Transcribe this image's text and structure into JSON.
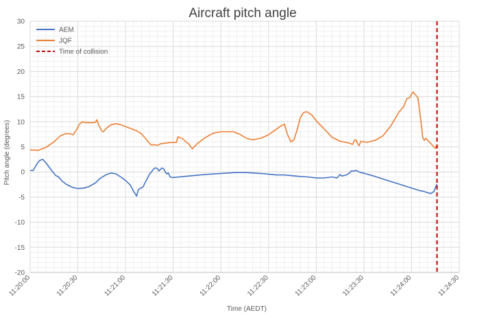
{
  "chart_data": {
    "type": "line",
    "title": "Aircraft pitch angle",
    "xlabel": "Time (AEDT)",
    "ylabel": "Pitch angle (degrees)",
    "ylim": [
      -20,
      30
    ],
    "yticks": [
      "30",
      "25",
      "20",
      "15",
      "10",
      "5",
      "0",
      "-5",
      "-10",
      "-15",
      "-20"
    ],
    "xlim": [
      "11:20:00",
      "11:24:30"
    ],
    "xticks": [
      "11:20:00",
      "11:20:30",
      "11:21:00",
      "11:21:30",
      "11:22:00",
      "11:22:30",
      "11:23:00",
      "11:23:30",
      "11:24:00",
      "11:24:30"
    ],
    "grid": true,
    "legend_position": "top-left",
    "series": [
      {
        "name": "AEM",
        "color": "#4472c4",
        "points": [
          [
            "11:20:00",
            0.3
          ],
          [
            "11:20:02",
            0.3
          ],
          [
            "11:20:04",
            1.5
          ],
          [
            "11:20:06",
            2.3
          ],
          [
            "11:20:08",
            2.5
          ],
          [
            "11:20:10",
            1.8
          ],
          [
            "11:20:13",
            0.5
          ],
          [
            "11:20:16",
            -0.7
          ],
          [
            "11:20:18",
            -1.0
          ],
          [
            "11:20:20",
            -1.8
          ],
          [
            "11:20:23",
            -2.5
          ],
          [
            "11:20:27",
            -3.1
          ],
          [
            "11:20:30",
            -3.3
          ],
          [
            "11:20:34",
            -3.2
          ],
          [
            "11:20:37",
            -2.9
          ],
          [
            "11:20:41",
            -2.2
          ],
          [
            "11:20:44",
            -1.3
          ],
          [
            "11:20:48",
            -0.5
          ],
          [
            "11:20:51",
            -0.2
          ],
          [
            "11:20:54",
            -0.4
          ],
          [
            "11:20:57",
            -1.0
          ],
          [
            "11:21:00",
            -1.7
          ],
          [
            "11:21:03",
            -2.6
          ],
          [
            "11:21:05",
            -3.8
          ],
          [
            "11:21:07",
            -4.8
          ],
          [
            "11:21:08",
            -3.6
          ],
          [
            "11:21:09",
            -3.3
          ],
          [
            "11:21:11",
            -3.0
          ],
          [
            "11:21:13",
            -1.7
          ],
          [
            "11:21:15",
            -0.5
          ],
          [
            "11:21:17",
            0.3
          ],
          [
            "11:21:18",
            0.7
          ],
          [
            "11:21:19",
            0.8
          ],
          [
            "11:21:20",
            0.7
          ],
          [
            "11:21:21",
            0.2
          ],
          [
            "11:21:22",
            0.5
          ],
          [
            "11:21:23",
            0.8
          ],
          [
            "11:21:24",
            0.6
          ],
          [
            "11:21:25",
            0.0
          ],
          [
            "11:21:26",
            -0.4
          ],
          [
            "11:21:27",
            -0.2
          ],
          [
            "11:21:28",
            -1.0
          ],
          [
            "11:21:30",
            -1.1
          ],
          [
            "11:21:40",
            -0.8
          ],
          [
            "11:21:50",
            -0.5
          ],
          [
            "11:22:00",
            -0.3
          ],
          [
            "11:22:10",
            -0.1
          ],
          [
            "11:22:15",
            -0.1
          ],
          [
            "11:22:25",
            -0.3
          ],
          [
            "11:22:35",
            -0.6
          ],
          [
            "11:22:40",
            -0.6
          ],
          [
            "11:22:50",
            -0.9
          ],
          [
            "11:22:55",
            -1.0
          ],
          [
            "11:23:00",
            -1.2
          ],
          [
            "11:23:05",
            -1.2
          ],
          [
            "11:23:10",
            -1.0
          ],
          [
            "11:23:13",
            -1.2
          ],
          [
            "11:23:15",
            -0.5
          ],
          [
            "11:23:16",
            -0.8
          ],
          [
            "11:23:19",
            -0.6
          ],
          [
            "11:23:21",
            -0.2
          ],
          [
            "11:23:22",
            0.2
          ],
          [
            "11:23:24",
            0.2
          ],
          [
            "11:23:25",
            0.3
          ],
          [
            "11:23:27",
            0.0
          ],
          [
            "11:23:35",
            -0.7
          ],
          [
            "11:23:45",
            -1.7
          ],
          [
            "11:23:55",
            -2.7
          ],
          [
            "11:24:00",
            -3.2
          ],
          [
            "11:24:05",
            -3.7
          ],
          [
            "11:24:07",
            -3.8
          ],
          [
            "11:24:09",
            -4.0
          ],
          [
            "11:24:12",
            -4.3
          ],
          [
            "11:24:14",
            -3.9
          ],
          [
            "11:24:16",
            -2.4
          ]
        ]
      },
      {
        "name": "JQF",
        "color": "#ed7d31",
        "points": [
          [
            "11:20:00",
            4.4
          ],
          [
            "11:20:05",
            4.3
          ],
          [
            "11:20:10",
            4.9
          ],
          [
            "11:20:15",
            6.0
          ],
          [
            "11:20:19",
            7.2
          ],
          [
            "11:20:22",
            7.6
          ],
          [
            "11:20:25",
            7.6
          ],
          [
            "11:20:27",
            7.4
          ],
          [
            "11:20:29",
            8.3
          ],
          [
            "11:20:31",
            9.5
          ],
          [
            "11:20:33",
            10.0
          ],
          [
            "11:20:35",
            9.8
          ],
          [
            "11:20:39",
            9.8
          ],
          [
            "11:20:41",
            9.9
          ],
          [
            "11:20:42",
            10.4
          ],
          [
            "11:20:43",
            9.4
          ],
          [
            "11:20:45",
            8.2
          ],
          [
            "11:20:46",
            8.0
          ],
          [
            "11:20:48",
            8.7
          ],
          [
            "11:20:51",
            9.4
          ],
          [
            "11:20:54",
            9.6
          ],
          [
            "11:20:57",
            9.4
          ],
          [
            "11:21:02",
            8.8
          ],
          [
            "11:21:07",
            8.2
          ],
          [
            "11:21:10",
            7.6
          ],
          [
            "11:21:14",
            6.1
          ],
          [
            "11:21:16",
            5.4
          ],
          [
            "11:21:18",
            5.4
          ],
          [
            "11:21:20",
            5.3
          ],
          [
            "11:21:22",
            5.6
          ],
          [
            "11:21:24",
            5.7
          ],
          [
            "11:21:27",
            5.8
          ],
          [
            "11:21:30",
            5.9
          ],
          [
            "11:21:32",
            5.9
          ],
          [
            "11:21:33",
            7.0
          ],
          [
            "11:21:36",
            6.6
          ],
          [
            "11:21:38",
            6.0
          ],
          [
            "11:21:40",
            5.5
          ],
          [
            "11:21:42",
            4.6
          ],
          [
            "11:21:45",
            5.6
          ],
          [
            "11:21:50",
            6.8
          ],
          [
            "11:21:55",
            7.7
          ],
          [
            "11:22:00",
            8.0
          ],
          [
            "11:22:05",
            8.0
          ],
          [
            "11:22:08",
            8.0
          ],
          [
            "11:22:12",
            7.5
          ],
          [
            "11:22:16",
            6.7
          ],
          [
            "11:22:20",
            6.4
          ],
          [
            "11:22:25",
            6.7
          ],
          [
            "11:22:30",
            7.4
          ],
          [
            "11:22:34",
            8.3
          ],
          [
            "11:22:38",
            9.2
          ],
          [
            "11:22:40",
            9.5
          ],
          [
            "11:22:42",
            7.4
          ],
          [
            "11:22:44",
            6.0
          ],
          [
            "11:22:46",
            6.4
          ],
          [
            "11:22:48",
            8.4
          ],
          [
            "11:22:50",
            10.8
          ],
          [
            "11:22:52",
            11.8
          ],
          [
            "11:22:54",
            12.0
          ],
          [
            "11:22:57",
            11.4
          ],
          [
            "11:23:00",
            10.2
          ],
          [
            "11:23:03",
            9.2
          ],
          [
            "11:23:07",
            7.9
          ],
          [
            "11:23:10",
            6.9
          ],
          [
            "11:23:15",
            6.1
          ],
          [
            "11:23:20",
            5.8
          ],
          [
            "11:23:23",
            5.5
          ],
          [
            "11:23:24",
            6.3
          ],
          [
            "11:23:25",
            6.4
          ],
          [
            "11:23:26",
            5.7
          ],
          [
            "11:23:27",
            5.2
          ],
          [
            "11:23:28",
            6.1
          ],
          [
            "11:23:32",
            5.9
          ],
          [
            "11:23:37",
            6.3
          ],
          [
            "11:23:42",
            7.2
          ],
          [
            "11:23:47",
            9.2
          ],
          [
            "11:23:52",
            11.9
          ],
          [
            "11:23:55",
            13.0
          ],
          [
            "11:23:57",
            14.6
          ],
          [
            "11:23:59",
            14.8
          ],
          [
            "11:24:00",
            15.5
          ],
          [
            "11:24:01",
            15.9
          ],
          [
            "11:24:02",
            15.5
          ],
          [
            "11:24:04",
            14.8
          ],
          [
            "11:24:06",
            9.8
          ],
          [
            "11:24:07",
            6.8
          ],
          [
            "11:24:08",
            6.3
          ],
          [
            "11:24:09",
            6.7
          ],
          [
            "11:24:12",
            5.7
          ],
          [
            "11:24:14",
            5.0
          ],
          [
            "11:24:15",
            4.7
          ],
          [
            "11:24:16",
            5.4
          ]
        ]
      }
    ],
    "annotations": [
      {
        "type": "vertical-line",
        "label": "Time of collision",
        "x": "11:24:16",
        "color": "#c00000",
        "style": "dashed"
      }
    ]
  }
}
